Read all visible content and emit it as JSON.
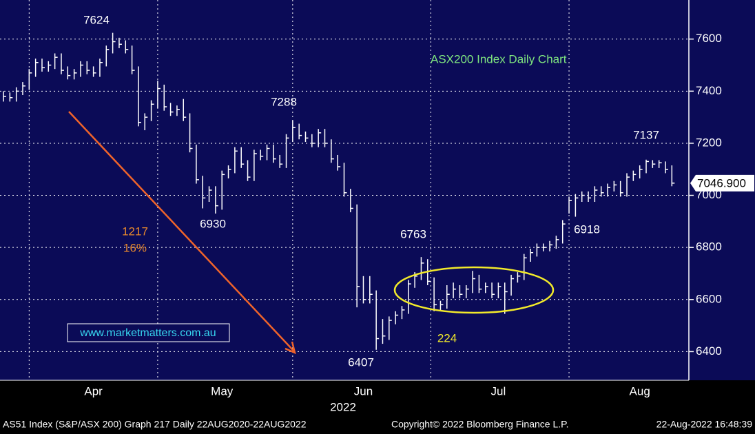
{
  "chart_data": {
    "type": "ohlc",
    "title": "ASX200 Index Daily Chart",
    "xlabel": "2022",
    "categories": [
      null,
      null,
      null,
      null,
      null,
      null,
      null,
      null,
      null,
      null,
      null,
      null,
      null,
      null,
      "Apr",
      null,
      null,
      null,
      null,
      null,
      null,
      null,
      null,
      null,
      null,
      null,
      null,
      null,
      null,
      null,
      null,
      null,
      null,
      null,
      "May",
      null,
      null,
      null,
      null,
      null,
      null,
      null,
      null,
      null,
      null,
      null,
      null,
      null,
      null,
      null,
      null,
      null,
      null,
      null,
      null,
      null,
      "Jun",
      null,
      null,
      null,
      null,
      null,
      null,
      null,
      null,
      null,
      null,
      null,
      null,
      null,
      null,
      null,
      null,
      null,
      null,
      null,
      null,
      "Jul",
      null,
      null,
      null,
      null,
      null,
      null,
      null,
      null,
      null,
      null,
      null,
      null,
      null,
      null,
      null,
      null,
      null,
      null,
      null,
      null,
      null,
      "Aug",
      null,
      null,
      null,
      null,
      null
    ],
    "close": [
      7380,
      7375,
      7400,
      7420,
      7470,
      7510,
      7490,
      7500,
      7530,
      7480,
      7460,
      7470,
      7500,
      7480,
      7470,
      7510,
      7560,
      7590,
      7580,
      7560,
      7480,
      7280,
      7300,
      7350,
      7410,
      7340,
      7320,
      7330,
      7300,
      7180,
      7060,
      6990,
      7020,
      6960,
      7080,
      7100,
      7170,
      7120,
      7070,
      7160,
      7150,
      7180,
      7140,
      7120,
      7220,
      7260,
      7230,
      7220,
      7200,
      7240,
      7200,
      7140,
      7110,
      7010,
      6950,
      6650,
      6600,
      6620,
      6450,
      6460,
      6520,
      6540,
      6560,
      6660,
      6690,
      6740,
      6670,
      6580,
      6580,
      6620,
      6640,
      6620,
      6640,
      6680,
      6640,
      6650,
      6620,
      6650,
      6630,
      6680,
      6690,
      6760,
      6780,
      6800,
      6800,
      6810,
      6830,
      6890,
      6980,
      6990,
      7000,
      6990,
      7020,
      7010,
      7030,
      7040,
      7010,
      7070,
      7080,
      7100,
      7130,
      7120,
      7125,
      7100,
      7046.9
    ],
    "high": [
      7400,
      7395,
      7415,
      7435,
      7485,
      7525,
      7525,
      7515,
      7545,
      7545,
      7495,
      7485,
      7515,
      7515,
      7495,
      7525,
      7575,
      7624,
      7605,
      7595,
      7575,
      7495,
      7315,
      7365,
      7440,
      7425,
      7355,
      7345,
      7370,
      7315,
      7195,
      7075,
      7035,
      7035,
      7095,
      7115,
      7185,
      7185,
      7135,
      7175,
      7175,
      7195,
      7195,
      7155,
      7235,
      7288,
      7275,
      7245,
      7235,
      7255,
      7255,
      7215,
      7155,
      7125,
      7025,
      6965,
      6690,
      6690,
      6635,
      6525,
      6535,
      6555,
      6575,
      6675,
      6705,
      6763,
      6755,
      6685,
      6595,
      6655,
      6665,
      6655,
      6655,
      6710,
      6695,
      6665,
      6665,
      6665,
      6665,
      6695,
      6705,
      6775,
      6795,
      6815,
      6815,
      6825,
      6845,
      6905,
      6995,
      7005,
      7015,
      7015,
      7035,
      7035,
      7045,
      7055,
      7055,
      7085,
      7095,
      7115,
      7137,
      7135,
      7135,
      7130,
      7115
    ],
    "low": [
      7360,
      7360,
      7360,
      7385,
      7405,
      7455,
      7475,
      7475,
      7485,
      7465,
      7445,
      7445,
      7455,
      7465,
      7455,
      7455,
      7495,
      7545,
      7565,
      7545,
      7465,
      7265,
      7250,
      7285,
      7335,
      7325,
      7305,
      7305,
      7285,
      7165,
      7045,
      6950,
      6975,
      6930,
      6945,
      7065,
      7085,
      7105,
      7055,
      7055,
      7135,
      7135,
      7125,
      7105,
      7105,
      7205,
      7215,
      7205,
      7185,
      7185,
      7185,
      7125,
      7095,
      6995,
      6935,
      6570,
      6585,
      6585,
      6407,
      6430,
      6445,
      6505,
      6525,
      6545,
      6645,
      6675,
      6655,
      6555,
      6555,
      6565,
      6605,
      6605,
      6605,
      6625,
      6625,
      6625,
      6605,
      6605,
      6545,
      6615,
      6665,
      6675,
      6745,
      6765,
      6785,
      6785,
      6795,
      6815,
      6930,
      6918,
      6975,
      6975,
      6975,
      6995,
      6995,
      7015,
      6995,
      6995,
      7055,
      7065,
      7085,
      7105,
      7105,
      7085,
      7035
    ],
    "color": "#ffffff",
    "ylim": [
      6290,
      7750
    ],
    "yticks": [
      6400,
      6600,
      6800,
      7000,
      7200,
      7400,
      7600
    ],
    "grid": true,
    "last_price": {
      "value": 7046.9,
      "label": "7046.900"
    },
    "annotations": [
      "7624",
      "7288",
      "6930",
      "6763",
      "6407",
      "6918",
      "7137",
      "1217",
      "16%",
      "224"
    ],
    "watermark": "www.marketmatters.com.au",
    "footer": [
      "AS51 Index (S&P/ASX 200) Graph 217  Daily 22AUG2020-22AUG2022",
      "Copyright© 2022 Bloomberg Finance L.P.",
      "22-Aug-2022 16:48:39"
    ]
  }
}
